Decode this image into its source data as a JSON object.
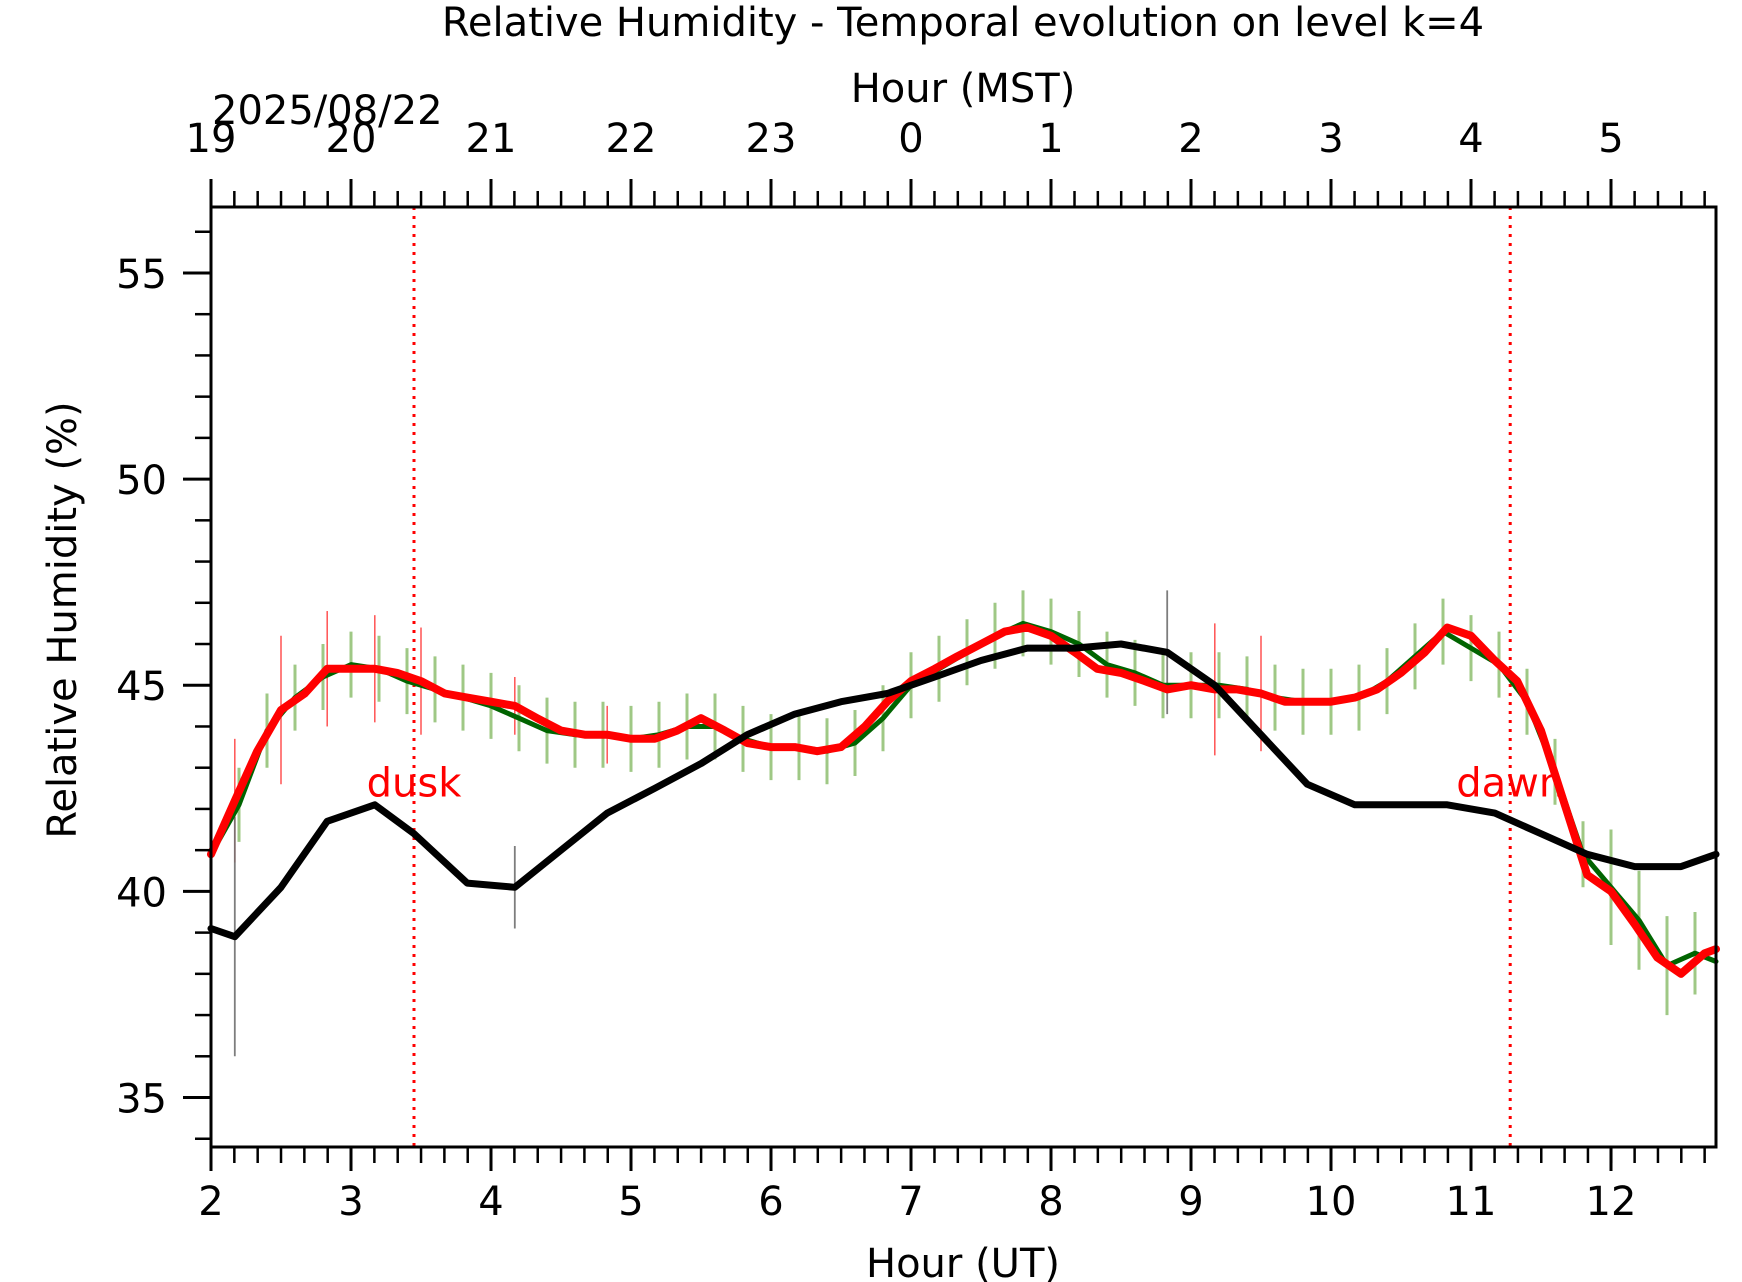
{
  "chart_data": {
    "type": "line",
    "title": "Relative Humidity - Temporal evolution on level k=4",
    "xlabel": "Hour (UT)",
    "ylabel": "Relative Humidity (%)",
    "top_xlabel": "Hour (MST)",
    "date_label": "2025/08/22",
    "xlim": [
      2.0,
      12.75
    ],
    "ylim": [
      33.8,
      56.6
    ],
    "x_ticks": [
      2,
      3,
      4,
      5,
      6,
      7,
      8,
      9,
      10,
      11,
      12
    ],
    "y_ticks": [
      35,
      40,
      45,
      50,
      55
    ],
    "top_ticks": [
      {
        "x": 2,
        "label": "19"
      },
      {
        "x": 3,
        "label": "20"
      },
      {
        "x": 4,
        "label": "21"
      },
      {
        "x": 5,
        "label": "22"
      },
      {
        "x": 6,
        "label": "23"
      },
      {
        "x": 7,
        "label": "0"
      },
      {
        "x": 8,
        "label": "1"
      },
      {
        "x": 9,
        "label": "2"
      },
      {
        "x": 10,
        "label": "3"
      },
      {
        "x": 11,
        "label": "4"
      },
      {
        "x": 12,
        "label": "5"
      }
    ],
    "annotations": [
      {
        "label": "dusk",
        "x": 3.45
      },
      {
        "label": "dawn",
        "x": 11.28
      }
    ],
    "series": [
      {
        "color": "#000000",
        "x": [
          2.0,
          2.17,
          2.5,
          2.83,
          3.17,
          3.45,
          3.83,
          4.17,
          4.5,
          4.83,
          5.17,
          5.5,
          5.83,
          6.17,
          6.5,
          6.83,
          7.17,
          7.5,
          7.83,
          8.17,
          8.5,
          8.83,
          9.17,
          9.5,
          9.83,
          10.17,
          10.5,
          10.83,
          11.17,
          11.5,
          11.83,
          12.17,
          12.5,
          12.75
        ],
        "values": [
          39.1,
          38.9,
          40.1,
          41.7,
          42.1,
          41.4,
          40.2,
          40.1,
          41.0,
          41.9,
          42.5,
          43.1,
          43.8,
          44.3,
          44.6,
          44.8,
          45.2,
          45.6,
          45.9,
          45.9,
          46.0,
          45.8,
          45.0,
          43.8,
          42.6,
          42.1,
          42.1,
          42.1,
          41.9,
          41.4,
          40.9,
          40.6,
          40.6,
          40.9
        ],
        "err": [
          0,
          2.9,
          0,
          0,
          0,
          0,
          0,
          1.0,
          0,
          0,
          0,
          0,
          0,
          0,
          0,
          0,
          0,
          0,
          0,
          0,
          0,
          1.5,
          0,
          0,
          0,
          0,
          0,
          0,
          0,
          0,
          0,
          0,
          0,
          0
        ]
      },
      {
        "color": "#006400",
        "x": [
          2.0,
          2.2,
          2.4,
          2.6,
          2.8,
          3.0,
          3.2,
          3.4,
          3.6,
          3.8,
          4.0,
          4.2,
          4.4,
          4.6,
          4.8,
          5.0,
          5.2,
          5.4,
          5.6,
          5.8,
          6.0,
          6.2,
          6.4,
          6.6,
          6.8,
          7.0,
          7.2,
          7.4,
          7.6,
          7.8,
          8.0,
          8.2,
          8.4,
          8.6,
          8.8,
          9.0,
          9.2,
          9.4,
          9.6,
          9.8,
          10.0,
          10.2,
          10.4,
          10.6,
          10.8,
          11.0,
          11.2,
          11.4,
          11.6,
          11.8,
          12.0,
          12.2,
          12.4,
          12.6,
          12.75
        ],
        "values": [
          40.9,
          42.1,
          43.9,
          44.7,
          45.2,
          45.5,
          45.4,
          45.1,
          44.9,
          44.7,
          44.5,
          44.2,
          43.9,
          43.8,
          43.8,
          43.7,
          43.8,
          44.0,
          44.0,
          43.7,
          43.5,
          43.5,
          43.4,
          43.6,
          44.2,
          45.0,
          45.4,
          45.8,
          46.2,
          46.5,
          46.3,
          46.0,
          45.5,
          45.3,
          45.0,
          45.0,
          45.0,
          44.9,
          44.7,
          44.6,
          44.6,
          44.7,
          45.1,
          45.7,
          46.3,
          45.9,
          45.5,
          44.6,
          42.9,
          40.9,
          40.1,
          39.3,
          38.2,
          38.5,
          38.3
        ],
        "err": [
          1.8,
          0.9,
          0.9,
          0.8,
          0.8,
          0.8,
          0.8,
          0.8,
          0.8,
          0.8,
          0.8,
          0.8,
          0.8,
          0.8,
          0.8,
          0.8,
          0.8,
          0.8,
          0.8,
          0.8,
          0.8,
          0.8,
          0.8,
          0.8,
          0.8,
          0.8,
          0.8,
          0.8,
          0.8,
          0.8,
          0.8,
          0.8,
          0.8,
          0.8,
          0.8,
          0.8,
          0.8,
          0.8,
          0.8,
          0.8,
          0.8,
          0.8,
          0.8,
          0.8,
          0.8,
          0.8,
          0.8,
          0.8,
          0.8,
          0.8,
          1.4,
          1.2,
          1.2,
          1.0,
          1.0
        ]
      },
      {
        "color": "#ff0000",
        "x": [
          2.0,
          2.17,
          2.33,
          2.5,
          2.67,
          2.83,
          3.0,
          3.17,
          3.33,
          3.5,
          3.67,
          3.83,
          4.0,
          4.17,
          4.33,
          4.5,
          4.67,
          4.83,
          5.0,
          5.17,
          5.33,
          5.5,
          5.67,
          5.83,
          6.0,
          6.17,
          6.33,
          6.5,
          6.67,
          6.83,
          7.0,
          7.17,
          7.33,
          7.5,
          7.67,
          7.83,
          8.0,
          8.17,
          8.33,
          8.5,
          8.67,
          8.83,
          9.0,
          9.17,
          9.33,
          9.5,
          9.67,
          9.83,
          10.0,
          10.17,
          10.33,
          10.5,
          10.67,
          10.83,
          11.0,
          11.17,
          11.33,
          11.5,
          11.67,
          11.83,
          12.0,
          12.17,
          12.33,
          12.5,
          12.67,
          12.75
        ],
        "values": [
          40.9,
          42.2,
          43.4,
          44.4,
          44.8,
          45.4,
          45.4,
          45.4,
          45.3,
          45.1,
          44.8,
          44.7,
          44.6,
          44.5,
          44.2,
          43.9,
          43.8,
          43.8,
          43.7,
          43.7,
          43.9,
          44.2,
          43.9,
          43.6,
          43.5,
          43.5,
          43.4,
          43.5,
          44.0,
          44.6,
          45.1,
          45.4,
          45.7,
          46.0,
          46.3,
          46.4,
          46.2,
          45.8,
          45.4,
          45.3,
          45.1,
          44.9,
          45.0,
          44.9,
          44.9,
          44.8,
          44.6,
          44.6,
          44.6,
          44.7,
          44.9,
          45.3,
          45.8,
          46.4,
          46.2,
          45.6,
          45.1,
          43.9,
          42.1,
          40.4,
          40.0,
          39.2,
          38.4,
          38.0,
          38.5,
          38.6
        ],
        "err": [
          0,
          1.5,
          0,
          1.8,
          0,
          1.4,
          0,
          1.3,
          0,
          1.3,
          0,
          0,
          0,
          0.7,
          0,
          0,
          0,
          0.7,
          0,
          0,
          0,
          0,
          0,
          0,
          0,
          0,
          0,
          0,
          0,
          0,
          0,
          0,
          0,
          0,
          0,
          0,
          0,
          0,
          0,
          0,
          0,
          0,
          0,
          1.6,
          0,
          1.4,
          0,
          0,
          0,
          0,
          0,
          0,
          0,
          0,
          0,
          0,
          0,
          0,
          0,
          0,
          0,
          0,
          0,
          0,
          0,
          0
        ]
      }
    ]
  }
}
